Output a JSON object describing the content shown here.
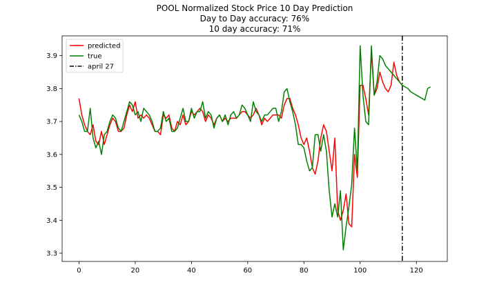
{
  "chart_data": {
    "type": "line",
    "title_lines": [
      "POOL Normalized Stock Price 10 Day Prediction",
      "Day to Day accuracy: 76%",
      "10 day accuracy: 71%"
    ],
    "xlabel": "",
    "ylabel": "",
    "xlim": [
      -6,
      131
    ],
    "ylim": [
      3.275,
      3.96
    ],
    "xticks": [
      0,
      20,
      40,
      60,
      80,
      100,
      120
    ],
    "yticks": [
      3.3,
      3.4,
      3.5,
      3.6,
      3.7,
      3.8,
      3.9
    ],
    "grid": false,
    "legend_position": "upper-left",
    "series": [
      {
        "name": "predicted",
        "color": "#ff0000",
        "x": [
          0,
          1,
          2,
          3,
          4,
          5,
          6,
          7,
          8,
          9,
          10,
          11,
          12,
          13,
          14,
          15,
          16,
          17,
          18,
          19,
          20,
          21,
          22,
          23,
          24,
          25,
          26,
          27,
          28,
          29,
          30,
          31,
          32,
          33,
          34,
          35,
          36,
          37,
          38,
          39,
          40,
          41,
          42,
          43,
          44,
          45,
          46,
          47,
          48,
          49,
          50,
          51,
          52,
          53,
          54,
          55,
          56,
          57,
          58,
          59,
          60,
          61,
          62,
          63,
          64,
          65,
          66,
          67,
          68,
          69,
          70,
          71,
          72,
          73,
          74,
          75,
          76,
          77,
          78,
          79,
          80,
          81,
          82,
          83,
          84,
          85,
          86,
          87,
          88,
          89,
          90,
          91,
          92,
          93,
          94,
          95,
          96,
          97,
          98,
          99,
          100,
          101,
          102,
          103,
          104,
          105,
          106,
          107,
          108,
          109,
          110,
          111,
          112,
          113,
          114,
          115
        ],
        "y": [
          3.77,
          3.72,
          3.69,
          3.67,
          3.66,
          3.69,
          3.64,
          3.63,
          3.67,
          3.63,
          3.66,
          3.69,
          3.71,
          3.7,
          3.67,
          3.67,
          3.68,
          3.72,
          3.75,
          3.73,
          3.76,
          3.71,
          3.72,
          3.71,
          3.72,
          3.71,
          3.69,
          3.67,
          3.67,
          3.66,
          3.72,
          3.71,
          3.72,
          3.68,
          3.67,
          3.7,
          3.69,
          3.72,
          3.69,
          3.7,
          3.73,
          3.72,
          3.73,
          3.74,
          3.73,
          3.7,
          3.72,
          3.71,
          3.69,
          3.71,
          3.72,
          3.7,
          3.71,
          3.7,
          3.71,
          3.71,
          3.71,
          3.72,
          3.73,
          3.73,
          3.72,
          3.71,
          3.72,
          3.74,
          3.72,
          3.69,
          3.71,
          3.7,
          3.71,
          3.72,
          3.72,
          3.72,
          3.71,
          3.75,
          3.77,
          3.77,
          3.74,
          3.72,
          3.69,
          3.65,
          3.63,
          3.65,
          3.61,
          3.56,
          3.54,
          3.58,
          3.65,
          3.69,
          3.67,
          3.61,
          3.55,
          3.65,
          3.43,
          3.4,
          3.43,
          3.48,
          3.39,
          3.38,
          3.6,
          3.53,
          3.81,
          3.81,
          3.77,
          3.72,
          3.91,
          3.78,
          3.8,
          3.85,
          3.82,
          3.8,
          3.79,
          3.81,
          3.88,
          3.84,
          3.82,
          3.81
        ],
        "x_visible_max": 115
      },
      {
        "name": "true",
        "color": "#008000",
        "x": [
          0,
          1,
          2,
          3,
          4,
          5,
          6,
          7,
          8,
          9,
          10,
          11,
          12,
          13,
          14,
          15,
          16,
          17,
          18,
          19,
          20,
          21,
          22,
          23,
          24,
          25,
          26,
          27,
          28,
          29,
          30,
          31,
          32,
          33,
          34,
          35,
          36,
          37,
          38,
          39,
          40,
          41,
          42,
          43,
          44,
          45,
          46,
          47,
          48,
          49,
          50,
          51,
          52,
          53,
          54,
          55,
          56,
          57,
          58,
          59,
          60,
          61,
          62,
          63,
          64,
          65,
          66,
          67,
          68,
          69,
          70,
          71,
          72,
          73,
          74,
          75,
          76,
          77,
          78,
          79,
          80,
          81,
          82,
          83,
          84,
          85,
          86,
          87,
          88,
          89,
          90,
          91,
          92,
          93,
          94,
          95,
          96,
          97,
          98,
          99,
          100,
          101,
          102,
          103,
          104,
          105,
          106,
          107,
          108,
          109,
          110,
          111,
          112,
          113,
          114,
          115,
          116,
          117,
          118,
          119,
          120,
          121,
          122,
          123,
          124,
          125
        ],
        "y": [
          3.72,
          3.7,
          3.67,
          3.67,
          3.74,
          3.65,
          3.62,
          3.64,
          3.6,
          3.66,
          3.67,
          3.7,
          3.72,
          3.71,
          3.68,
          3.67,
          3.7,
          3.73,
          3.76,
          3.75,
          3.72,
          3.73,
          3.7,
          3.74,
          3.73,
          3.72,
          3.7,
          3.67,
          3.67,
          3.68,
          3.73,
          3.7,
          3.71,
          3.67,
          3.67,
          3.68,
          3.71,
          3.74,
          3.7,
          3.7,
          3.74,
          3.71,
          3.73,
          3.73,
          3.76,
          3.71,
          3.73,
          3.72,
          3.68,
          3.71,
          3.72,
          3.7,
          3.72,
          3.69,
          3.72,
          3.73,
          3.71,
          3.72,
          3.75,
          3.74,
          3.72,
          3.7,
          3.76,
          3.73,
          3.72,
          3.7,
          3.72,
          3.72,
          3.73,
          3.74,
          3.74,
          3.7,
          3.73,
          3.79,
          3.8,
          3.76,
          3.73,
          3.69,
          3.63,
          3.63,
          3.62,
          3.58,
          3.55,
          3.56,
          3.66,
          3.66,
          3.61,
          3.66,
          3.61,
          3.49,
          3.41,
          3.45,
          3.41,
          3.49,
          3.31,
          3.38,
          3.44,
          3.51,
          3.68,
          3.55,
          3.93,
          3.78,
          3.7,
          3.69,
          3.93,
          3.78,
          3.82,
          3.9,
          3.89,
          3.87,
          3.86,
          3.85,
          3.84,
          3.83,
          3.82,
          3.81,
          3.805,
          3.8,
          3.79,
          3.785,
          3.78,
          3.775,
          3.77,
          3.765,
          3.8,
          3.805
        ]
      }
    ],
    "vertical_line": {
      "name": "april 27",
      "x": 115,
      "color": "#000000",
      "style": "dash-dot"
    }
  }
}
